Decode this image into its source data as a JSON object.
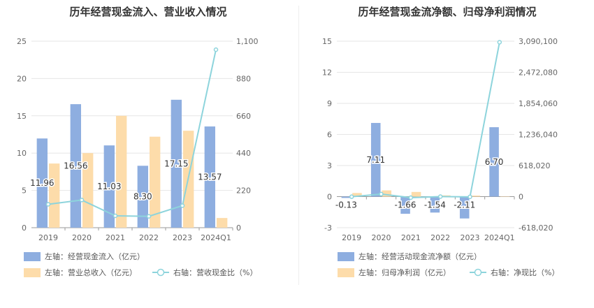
{
  "chart_data": [
    {
      "type": "bar",
      "title": "历年经营现金流入、营业收入情况",
      "categories": [
        "2019",
        "2020",
        "2021",
        "2022",
        "2023",
        "2024Q1"
      ],
      "ylim_left": [
        0,
        25
      ],
      "ylim_right": [
        0,
        1100
      ],
      "left_ticks": [
        "0",
        "5",
        "10",
        "15",
        "20",
        "25"
      ],
      "right_ticks": [
        "0",
        "220",
        "440",
        "660",
        "880",
        "1,100"
      ],
      "series": [
        {
          "name": "左轴：经营现金流入（亿元）",
          "axis": "left",
          "kind": "bar",
          "color": "#8eaee0",
          "values": [
            11.96,
            16.56,
            11.03,
            8.3,
            17.15,
            13.57
          ],
          "labels": [
            "11.96",
            "16.56",
            "11.03",
            "8.30",
            "17.15",
            "13.57"
          ]
        },
        {
          "name": "左轴：营业总收入（亿元）",
          "axis": "left",
          "kind": "bar",
          "color": "#fddcaa",
          "values": [
            8.6,
            10.0,
            15.0,
            12.2,
            13.0,
            1.3
          ]
        },
        {
          "name": "右轴：营收现金比（%）",
          "axis": "right",
          "kind": "line",
          "color": "#8dd4dc",
          "values": [
            138,
            163,
            70,
            67,
            130,
            1050
          ]
        }
      ],
      "legend": [
        "左轴：经营现金流入（亿元）",
        "左轴：营业总收入（亿元）",
        "右轴：营收现金比（%）"
      ],
      "grid": true,
      "legend_position": "bottom"
    },
    {
      "type": "bar",
      "title": "历年经营现金流净额、归母净利润情况",
      "categories": [
        "2019",
        "2020",
        "2021",
        "2022",
        "2023",
        "2024Q1"
      ],
      "ylim_left": [
        -3,
        15
      ],
      "ylim_right": [
        -618020,
        3090100
      ],
      "left_ticks": [
        "-3",
        "0",
        "3",
        "6",
        "9",
        "12",
        "15"
      ],
      "right_ticks": [
        "-618,020",
        "0",
        "618,020",
        "1,236,040",
        "1,854,060",
        "2,472,080",
        "3,090,100"
      ],
      "series": [
        {
          "name": "左轴：经营活动现金流净额（亿元）",
          "axis": "left",
          "kind": "bar",
          "color": "#8eaee0",
          "values": [
            -0.13,
            7.11,
            -1.66,
            -1.54,
            -2.11,
            6.7
          ],
          "labels": [
            "-0.13",
            "7.11",
            "-1.66",
            "-1.54",
            "-2.11",
            "6.70"
          ]
        },
        {
          "name": "左轴：归母净利润（亿元）",
          "axis": "left",
          "kind": "bar",
          "color": "#fddcaa",
          "values": [
            0.35,
            0.6,
            0.45,
            0.12,
            0.1,
            0.0
          ]
        },
        {
          "name": "右轴：净现比（%）",
          "axis": "right",
          "kind": "line",
          "color": "#8dd4dc",
          "values": [
            -2000,
            50000,
            -20000,
            0,
            -5000,
            3070000
          ]
        }
      ],
      "legend": [
        "左轴：经营活动现金流净额（亿元）",
        "左轴：归母净利润（亿元）",
        "右轴：净现比（%）"
      ],
      "grid": true,
      "legend_position": "bottom"
    }
  ]
}
